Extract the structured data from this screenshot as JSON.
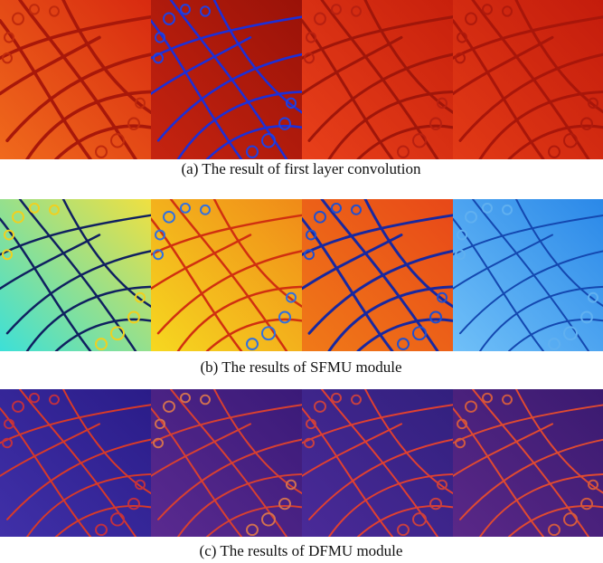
{
  "figure": {
    "rows": [
      {
        "caption": "(a) The result of first layer convolution"
      },
      {
        "caption": "(b) The results of SFMU module"
      },
      {
        "caption": "(c) The results of DFMU module"
      }
    ]
  }
}
